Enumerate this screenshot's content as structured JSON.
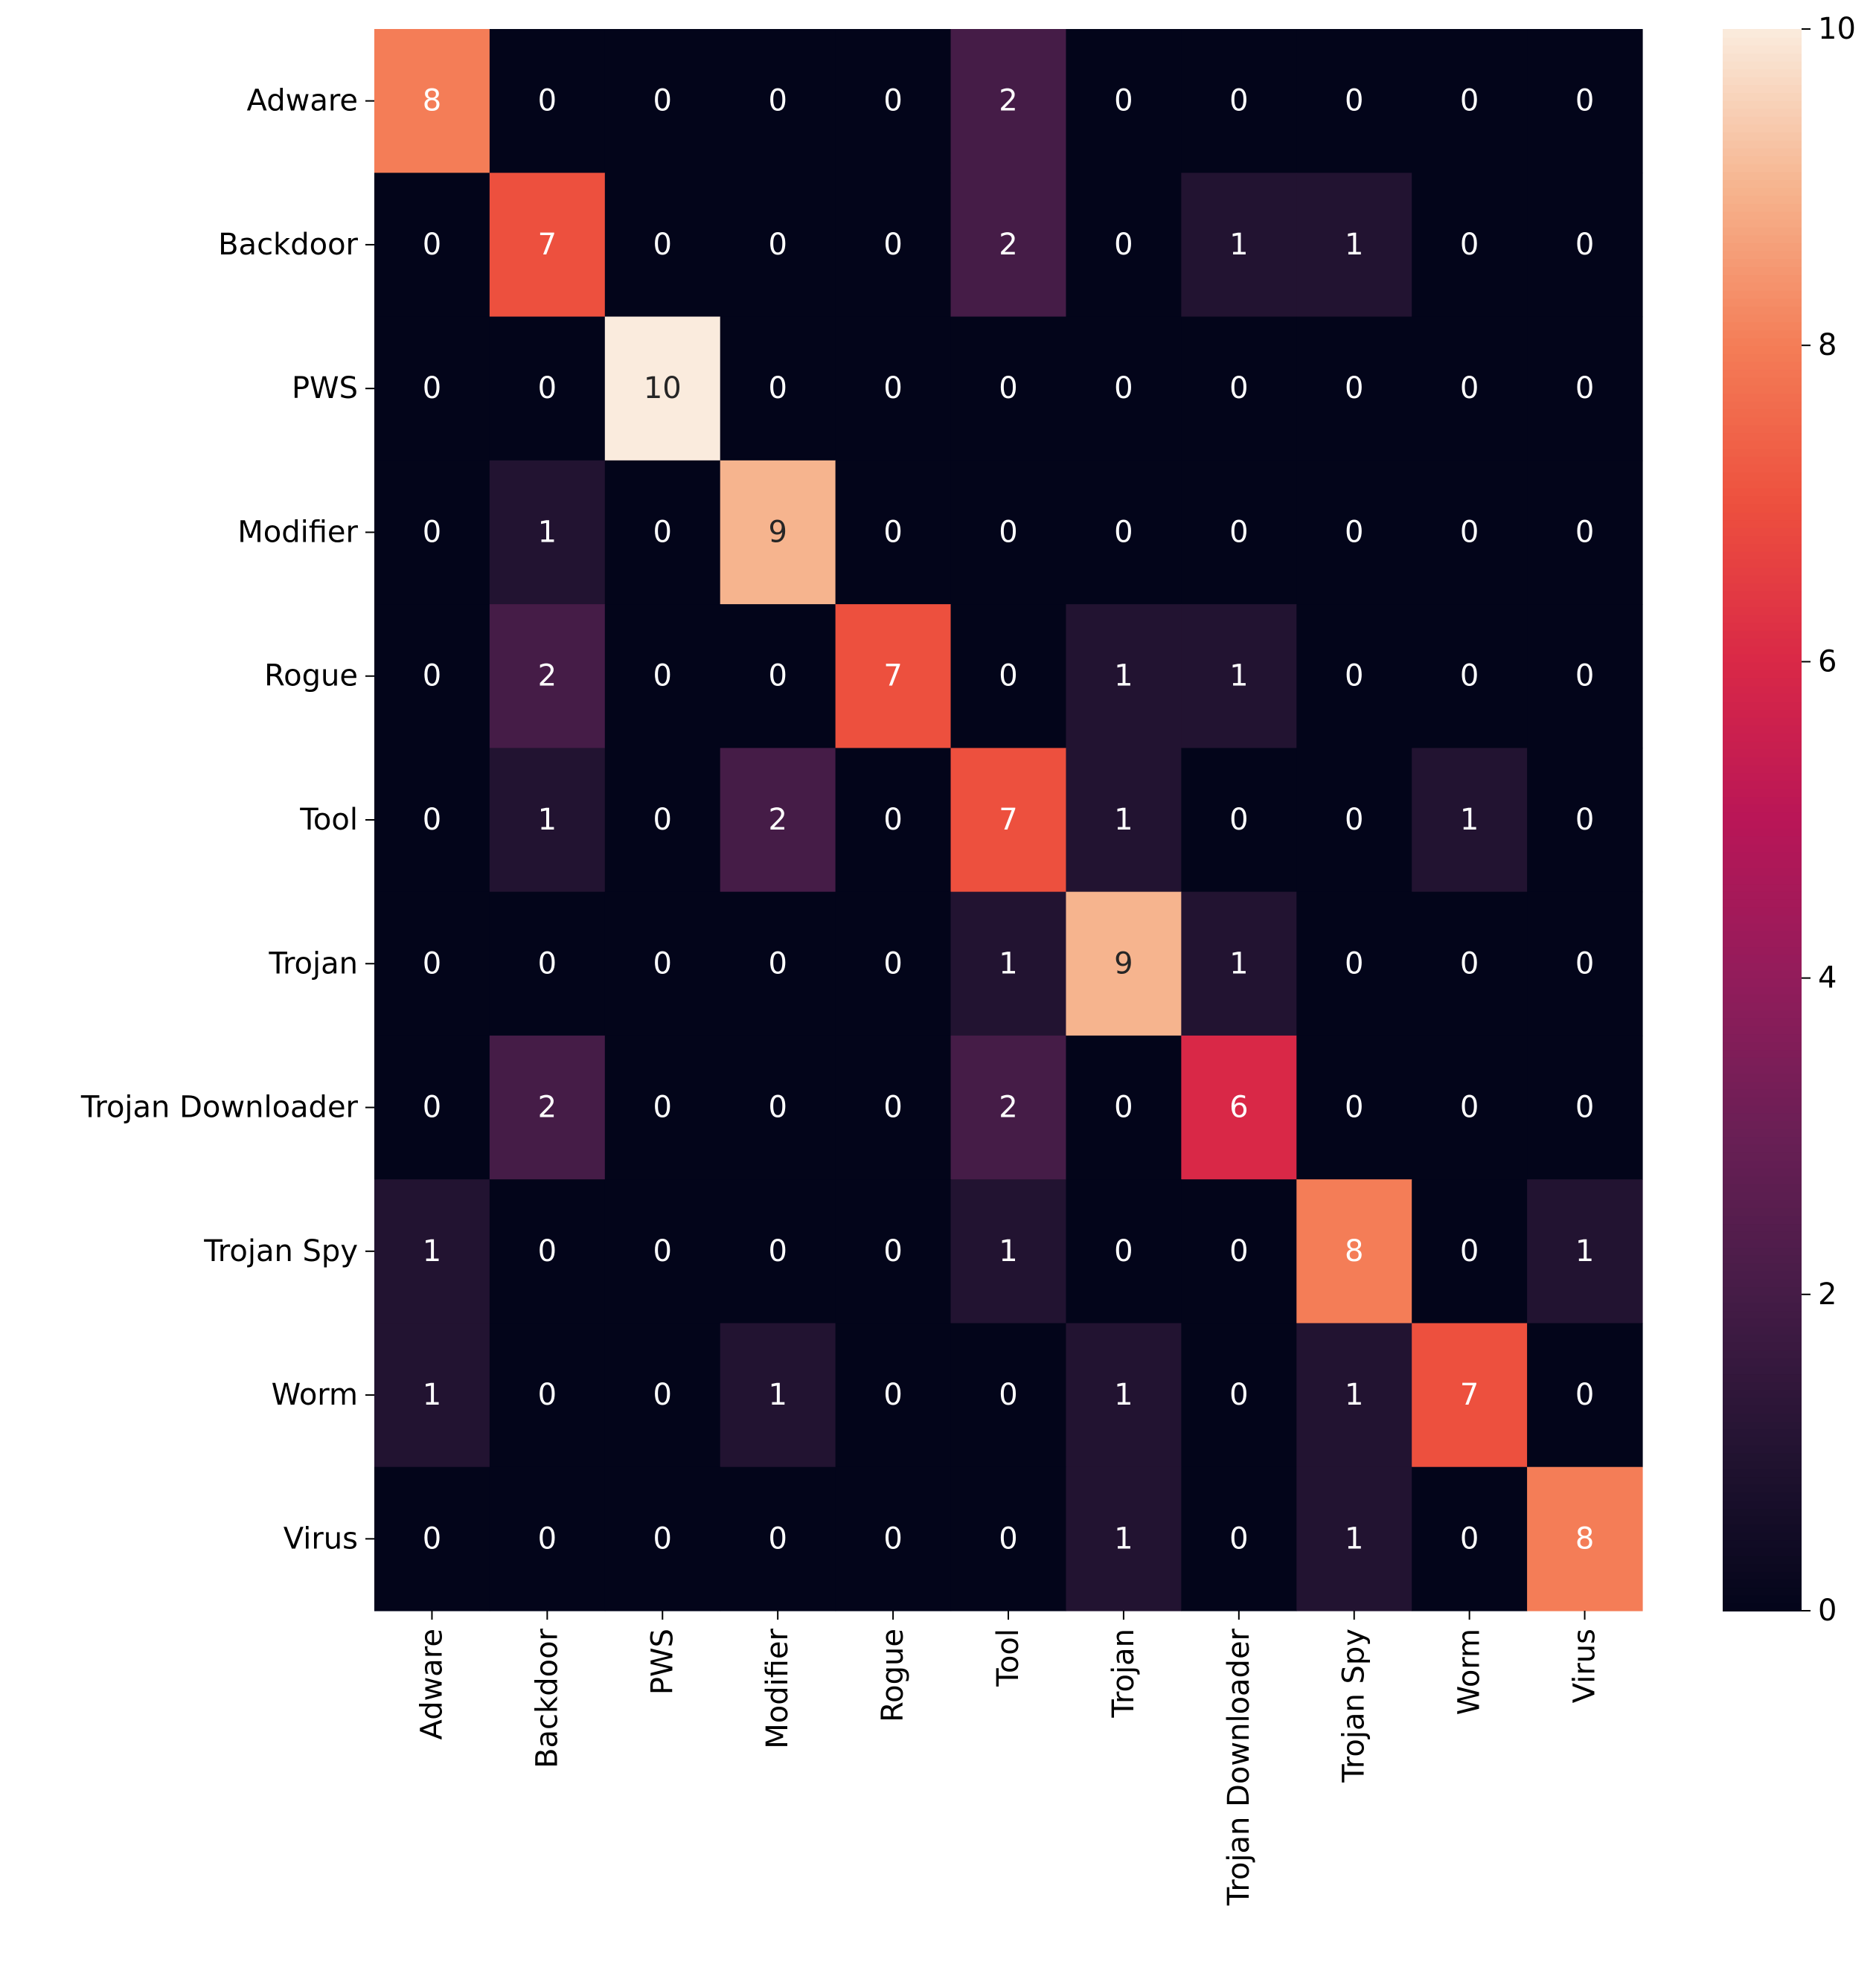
{
  "chart_data": {
    "type": "heatmap",
    "title": "",
    "xlabel": "",
    "ylabel": "",
    "row_labels": [
      "Adware",
      "Backdoor",
      "PWS",
      "Modifier",
      "Rogue",
      "Tool",
      "Trojan",
      "Trojan Downloader",
      "Trojan Spy",
      "Worm",
      "Virus"
    ],
    "col_labels": [
      "Adware",
      "Backdoor",
      "PWS",
      "Modifier",
      "Rogue",
      "Tool",
      "Trojan",
      "Trojan Downloader",
      "Trojan Spy",
      "Worm",
      "Virus"
    ],
    "values": [
      [
        8,
        0,
        0,
        0,
        0,
        2,
        0,
        0,
        0,
        0,
        0
      ],
      [
        0,
        7,
        0,
        0,
        0,
        2,
        0,
        1,
        1,
        0,
        0
      ],
      [
        0,
        0,
        10,
        0,
        0,
        0,
        0,
        0,
        0,
        0,
        0
      ],
      [
        0,
        1,
        0,
        9,
        0,
        0,
        0,
        0,
        0,
        0,
        0
      ],
      [
        0,
        2,
        0,
        0,
        7,
        0,
        1,
        1,
        0,
        0,
        0
      ],
      [
        0,
        1,
        0,
        2,
        0,
        7,
        1,
        0,
        0,
        1,
        0
      ],
      [
        0,
        0,
        0,
        0,
        0,
        1,
        9,
        1,
        0,
        0,
        0
      ],
      [
        0,
        2,
        0,
        0,
        0,
        2,
        0,
        6,
        0,
        0,
        0
      ],
      [
        1,
        0,
        0,
        0,
        0,
        1,
        0,
        0,
        8,
        0,
        1
      ],
      [
        1,
        0,
        0,
        1,
        0,
        0,
        1,
        0,
        1,
        7,
        0
      ],
      [
        0,
        0,
        0,
        0,
        0,
        0,
        1,
        0,
        1,
        0,
        8
      ]
    ],
    "colorbar": {
      "range": [
        0,
        10
      ],
      "ticks": [
        "0",
        "2",
        "4",
        "6",
        "8",
        "10"
      ],
      "colormap": "rocket"
    },
    "annotated": true
  }
}
